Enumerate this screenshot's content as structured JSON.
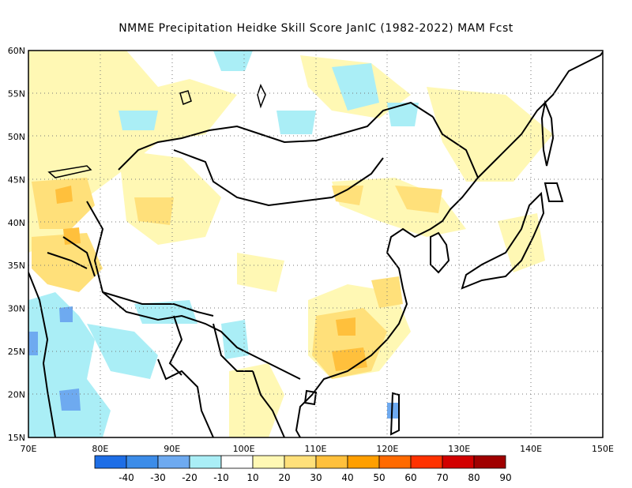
{
  "title": "NMME  Precipitation Heidke Skill Score JanIC (1982-2022) MAM Fcst",
  "map": {
    "lon_range": [
      70,
      150
    ],
    "lat_range": [
      15,
      60
    ],
    "x_tick_labels": [
      "70E",
      "80E",
      "90E",
      "100E",
      "110E",
      "120E",
      "130E",
      "140E",
      "150E"
    ],
    "y_tick_labels": [
      "15N",
      "20N",
      "25N",
      "30N",
      "35N",
      "40N",
      "45N",
      "50N",
      "55N",
      "60N"
    ],
    "gridlines": "dotted"
  },
  "colorbar": {
    "labels": [
      "-40",
      "-30",
      "-20",
      "-10",
      "10",
      "20",
      "30",
      "40",
      "50",
      "60",
      "70",
      "80",
      "90"
    ],
    "colors": [
      "#1e6ee6",
      "#3c8ce8",
      "#6eaaf0",
      "#aaeef6",
      "#ffffff",
      "#fff8b4",
      "#ffe07a",
      "#ffc03c",
      "#ff9f00",
      "#ff6a00",
      "#ff3200",
      "#d20000",
      "#a00000"
    ]
  }
}
